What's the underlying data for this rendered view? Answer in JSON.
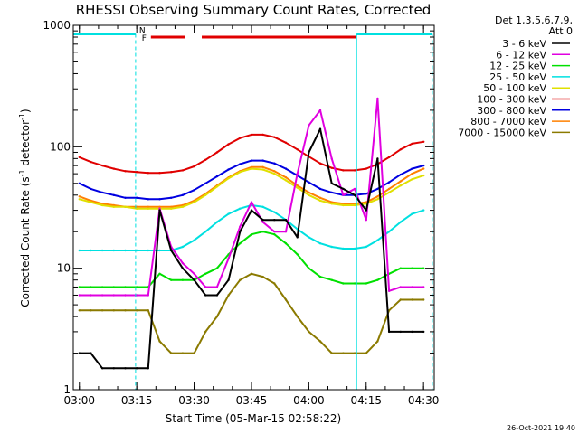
{
  "chart_data": {
    "type": "line",
    "title": "RHESSI Observing Summary Count Rates, Corrected",
    "xlabel": "Start Time (05-Mar-15 02:58:22)",
    "ylabel_main": "Corrected Count Rate (s",
    "ylabel_sup1": "-1",
    "ylabel_mid": " detector",
    "ylabel_sup2": "-1",
    "ylabel_end": ")",
    "y_scale": "log",
    "ylim": [
      1,
      1000
    ],
    "xlim_minutes": [
      178.4,
      272.8
    ],
    "x_tick_labels": [
      "03:00",
      "03:15",
      "03:30",
      "03:45",
      "04:00",
      "04:15",
      "04:30"
    ],
    "y_tick_labels": [
      "1",
      "10",
      "100",
      "1000"
    ],
    "legend_header": [
      "Det 1,3,5,6,7,9,",
      "Att 0"
    ],
    "timestamp": "26-Oct-2021 19:40",
    "flags": {
      "F": "F",
      "N": "N"
    },
    "series": [
      {
        "name": "3 - 6 keV",
        "color": "#000000",
        "x": [
          180,
          183,
          186,
          189,
          192,
          195,
          198,
          201,
          204,
          207,
          210,
          213,
          216,
          219,
          222,
          225,
          228,
          231,
          234,
          237,
          240,
          243,
          246,
          249,
          252,
          255,
          258,
          261,
          264,
          267,
          270
        ],
        "values": [
          2,
          2,
          1.5,
          1.5,
          1.5,
          1.5,
          1.5,
          30,
          14,
          10,
          8,
          6,
          6,
          8,
          20,
          30,
          25,
          25,
          25,
          18,
          90,
          140,
          50,
          45,
          40,
          30,
          80,
          3,
          3,
          3,
          3
        ]
      },
      {
        "name": "6 - 12 keV",
        "color": "#e000e0",
        "x": [
          180,
          183,
          186,
          189,
          192,
          195,
          198,
          201,
          204,
          207,
          210,
          213,
          216,
          219,
          222,
          225,
          228,
          231,
          234,
          237,
          240,
          243,
          246,
          249,
          252,
          255,
          258,
          261,
          264,
          267,
          270
        ],
        "values": [
          6,
          6,
          6,
          6,
          6,
          6,
          6,
          31,
          15,
          11,
          9,
          7,
          7,
          12,
          22,
          35,
          24,
          20,
          20,
          60,
          150,
          200,
          80,
          40,
          45,
          25,
          250,
          6.5,
          7,
          7,
          7
        ]
      },
      {
        "name": "12 - 25 keV",
        "color": "#00e000",
        "x": [
          180,
          183,
          186,
          189,
          192,
          195,
          198,
          201,
          204,
          207,
          210,
          213,
          216,
          219,
          222,
          225,
          228,
          231,
          234,
          237,
          240,
          243,
          246,
          249,
          252,
          255,
          258,
          261,
          264,
          267,
          270
        ],
        "values": [
          7,
          7,
          7,
          7,
          7,
          7,
          7,
          9,
          8,
          8,
          8,
          9,
          10,
          13,
          16,
          19,
          20,
          19,
          16,
          13,
          10,
          8.5,
          8,
          7.5,
          7.5,
          7.5,
          8,
          9,
          10,
          10,
          10
        ]
      },
      {
        "name": "25 - 50 keV",
        "color": "#00e0e0",
        "x": [
          180,
          183,
          186,
          189,
          192,
          195,
          198,
          201,
          204,
          207,
          210,
          213,
          216,
          219,
          222,
          225,
          228,
          231,
          234,
          237,
          240,
          243,
          246,
          249,
          252,
          255,
          258,
          261,
          264,
          267,
          270
        ],
        "values": [
          14,
          14,
          14,
          14,
          14,
          14,
          14,
          14,
          14,
          15,
          17,
          20,
          24,
          28,
          31,
          33,
          32,
          29,
          25,
          21,
          18,
          16,
          15,
          14.5,
          14.5,
          15,
          17,
          20,
          24,
          28,
          30
        ]
      },
      {
        "name": "50 - 100 keV",
        "color": "#e0e000",
        "x": [
          180,
          183,
          186,
          189,
          192,
          195,
          198,
          201,
          204,
          207,
          210,
          213,
          216,
          219,
          222,
          225,
          228,
          231,
          234,
          237,
          240,
          243,
          246,
          249,
          252,
          255,
          258,
          261,
          264,
          267,
          270
        ],
        "values": [
          37,
          35,
          33,
          32,
          32,
          31,
          31,
          31,
          31,
          32,
          35,
          40,
          47,
          55,
          62,
          66,
          65,
          60,
          53,
          46,
          40,
          36,
          34,
          33,
          33,
          34,
          37,
          42,
          48,
          54,
          58
        ]
      },
      {
        "name": "100 - 300 keV",
        "color": "#e00000",
        "x": [
          180,
          183,
          186,
          189,
          192,
          195,
          198,
          201,
          204,
          207,
          210,
          213,
          216,
          219,
          222,
          225,
          228,
          231,
          234,
          237,
          240,
          243,
          246,
          249,
          252,
          255,
          258,
          261,
          264,
          267,
          270
        ],
        "values": [
          82,
          75,
          70,
          66,
          63,
          62,
          61,
          61,
          62,
          64,
          69,
          78,
          90,
          105,
          118,
          126,
          126,
          120,
          108,
          95,
          83,
          73,
          67,
          64,
          64,
          66,
          72,
          82,
          95,
          106,
          110
        ]
      },
      {
        "name": "300 - 800 keV",
        "color": "#0000e0",
        "x": [
          180,
          183,
          186,
          189,
          192,
          195,
          198,
          201,
          204,
          207,
          210,
          213,
          216,
          219,
          222,
          225,
          228,
          231,
          234,
          237,
          240,
          243,
          246,
          249,
          252,
          255,
          258,
          261,
          264,
          267,
          270
        ],
        "values": [
          50,
          45,
          42,
          40,
          38,
          38,
          37,
          37,
          38,
          40,
          44,
          50,
          57,
          65,
          72,
          77,
          77,
          73,
          66,
          58,
          51,
          45,
          42,
          40,
          40,
          41,
          45,
          51,
          59,
          66,
          70
        ]
      },
      {
        "name": "800 - 7000 keV",
        "color": "#ff8000",
        "x": [
          180,
          183,
          186,
          189,
          192,
          195,
          198,
          201,
          204,
          207,
          210,
          213,
          216,
          219,
          222,
          225,
          228,
          231,
          234,
          237,
          240,
          243,
          246,
          249,
          252,
          255,
          258,
          261,
          264,
          267,
          270
        ],
        "values": [
          39,
          36,
          34,
          33,
          32,
          32,
          32,
          32,
          32,
          33,
          36,
          41,
          48,
          56,
          63,
          68,
          68,
          63,
          56,
          48,
          42,
          38,
          35,
          34,
          34,
          35,
          39,
          45,
          52,
          60,
          66
        ]
      },
      {
        "name": "7000 - 15000 keV",
        "color": "#8b7a00",
        "x": [
          180,
          183,
          186,
          189,
          192,
          195,
          198,
          201,
          204,
          207,
          210,
          213,
          216,
          219,
          222,
          225,
          228,
          231,
          234,
          237,
          240,
          243,
          246,
          249,
          252,
          255,
          258,
          261,
          264,
          267,
          270
        ],
        "values": [
          4.5,
          4.5,
          4.5,
          4.5,
          4.5,
          4.5,
          4.5,
          2.5,
          2,
          2,
          2,
          3,
          4,
          6,
          8,
          9,
          8.5,
          7.5,
          5.5,
          4,
          3,
          2.5,
          2,
          2,
          2,
          2,
          2.5,
          4.5,
          5.5,
          5.5,
          5.5
        ]
      }
    ],
    "bars": [
      {
        "color": "#00e0e0",
        "level": 850,
        "ranges_minutes": [
          [
            178.4,
            194.7
          ],
          [
            252.5,
            272.3
          ]
        ]
      },
      {
        "color": "#e00000",
        "level": 800,
        "ranges_minutes": [
          [
            198.7,
            207.6
          ],
          [
            212.0,
            252.5
          ]
        ]
      }
    ],
    "dashed_vlines_minutes": [
      194.7,
      272.3
    ],
    "solid_vlines_minutes": [
      252.5
    ]
  }
}
